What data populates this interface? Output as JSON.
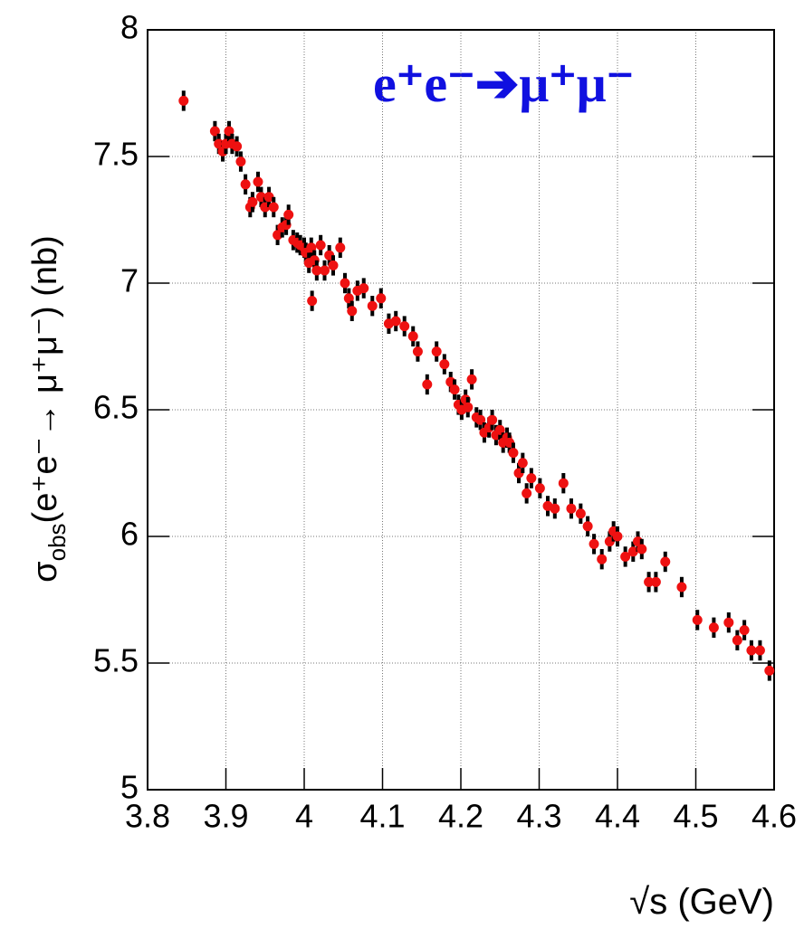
{
  "chart_data": {
    "type": "scatter",
    "title": "e⁺e⁻➔μ⁺μ⁻",
    "title_color": "#1010e0",
    "ylabel_symbol": "σ",
    "ylabel_subscript": "obs",
    "ylabel_rest": "(e⁺e⁻→ μ⁺μ⁻) (nb)",
    "xlabel": "√s (GeV)",
    "xlim": [
      3.8,
      4.6
    ],
    "ylim": [
      5,
      8
    ],
    "xticks": [
      3.8,
      3.9,
      4,
      4.1,
      4.2,
      4.3,
      4.4,
      4.5,
      4.6
    ],
    "yticks": [
      5,
      5.5,
      6,
      6.5,
      7,
      7.5,
      8
    ],
    "grid": true,
    "series": [
      {
        "color": "#ee1111",
        "x": [
          3.846,
          3.886,
          3.891,
          3.896,
          3.9,
          3.904,
          3.908,
          3.914,
          3.919,
          3.925,
          3.931,
          3.934,
          3.941,
          3.945,
          3.95,
          3.955,
          3.961,
          3.966,
          3.972,
          3.977,
          3.98,
          3.986,
          3.991,
          3.995,
          4.0,
          4.002,
          4.006,
          4.009,
          4.01,
          4.013,
          4.016,
          4.021,
          4.026,
          4.032,
          4.037,
          4.046,
          4.052,
          4.057,
          4.061,
          4.068,
          4.076,
          4.087,
          4.098,
          4.108,
          4.117,
          4.128,
          4.139,
          4.145,
          4.157,
          4.169,
          4.179,
          4.187,
          4.192,
          4.197,
          4.201,
          4.206,
          4.209,
          4.214,
          4.22,
          4.225,
          4.23,
          4.236,
          4.24,
          4.245,
          4.25,
          4.254,
          4.259,
          4.262,
          4.267,
          4.274,
          4.279,
          4.284,
          4.29,
          4.301,
          4.311,
          4.32,
          4.331,
          4.341,
          4.353,
          4.362,
          4.37,
          4.38,
          4.39,
          4.395,
          4.4,
          4.41,
          4.42,
          4.426,
          4.431,
          4.44,
          4.449,
          4.461,
          4.482,
          4.502,
          4.523,
          4.542,
          4.553,
          4.562,
          4.571,
          4.582,
          4.594
        ],
        "values": [
          7.72,
          7.6,
          7.55,
          7.52,
          7.55,
          7.6,
          7.55,
          7.54,
          7.48,
          7.39,
          7.3,
          7.32,
          7.4,
          7.34,
          7.3,
          7.34,
          7.3,
          7.19,
          7.22,
          7.23,
          7.27,
          7.17,
          7.16,
          7.15,
          7.14,
          7.12,
          7.08,
          7.14,
          6.93,
          7.09,
          7.05,
          7.15,
          7.05,
          7.11,
          7.07,
          7.14,
          7.0,
          6.94,
          6.89,
          6.97,
          6.98,
          6.91,
          6.94,
          6.84,
          6.85,
          6.83,
          6.79,
          6.73,
          6.6,
          6.73,
          6.68,
          6.61,
          6.58,
          6.52,
          6.5,
          6.54,
          6.51,
          6.62,
          6.47,
          6.46,
          6.41,
          6.43,
          6.46,
          6.4,
          6.42,
          6.37,
          6.39,
          6.37,
          6.33,
          6.25,
          6.29,
          6.17,
          6.23,
          6.19,
          6.12,
          6.11,
          6.21,
          6.11,
          6.09,
          6.04,
          5.97,
          5.91,
          5.98,
          6.02,
          6.0,
          5.92,
          5.94,
          5.98,
          5.95,
          5.82,
          5.82,
          5.9,
          5.8,
          5.67,
          5.64,
          5.66,
          5.59,
          5.63,
          5.55,
          5.55,
          5.47
        ],
        "errors": [
          0.04,
          0.04,
          0.04,
          0.04,
          0.04,
          0.04,
          0.04,
          0.04,
          0.04,
          0.04,
          0.04,
          0.04,
          0.04,
          0.04,
          0.04,
          0.04,
          0.04,
          0.04,
          0.04,
          0.04,
          0.04,
          0.04,
          0.04,
          0.04,
          0.04,
          0.04,
          0.04,
          0.04,
          0.04,
          0.04,
          0.04,
          0.04,
          0.04,
          0.04,
          0.04,
          0.04,
          0.04,
          0.04,
          0.04,
          0.04,
          0.04,
          0.04,
          0.04,
          0.04,
          0.04,
          0.04,
          0.04,
          0.04,
          0.04,
          0.04,
          0.04,
          0.04,
          0.04,
          0.04,
          0.04,
          0.04,
          0.04,
          0.04,
          0.04,
          0.04,
          0.04,
          0.04,
          0.04,
          0.04,
          0.04,
          0.04,
          0.04,
          0.04,
          0.04,
          0.04,
          0.04,
          0.04,
          0.04,
          0.04,
          0.04,
          0.04,
          0.04,
          0.04,
          0.04,
          0.04,
          0.04,
          0.04,
          0.04,
          0.04,
          0.04,
          0.04,
          0.04,
          0.04,
          0.04,
          0.04,
          0.04,
          0.04,
          0.04,
          0.04,
          0.04,
          0.04,
          0.04,
          0.04,
          0.04,
          0.04,
          0.04
        ]
      }
    ]
  }
}
